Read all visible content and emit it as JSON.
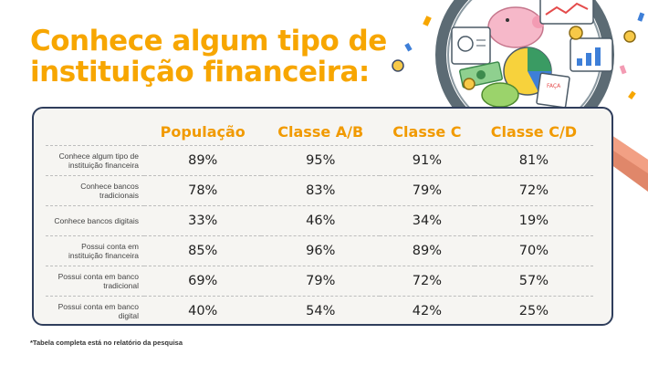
{
  "title": {
    "line1": "Conhece algum tipo de",
    "line2": "instituição financeira:"
  },
  "footnote": "*Tabela completa está no relatório da pesquisa",
  "illustration": {
    "badge_text": "FAÇA",
    "icons": [
      "magnifier-illustration",
      "piggy-bank-icon",
      "line-chart-card-icon",
      "bar-chart-card-icon",
      "pie-chart-icon",
      "coin-icon",
      "banknote-icon",
      "receipt-icon",
      "calculator-icon"
    ]
  },
  "colors": {
    "accent": "#f7a600",
    "header": "#f19a00",
    "border": "#2f3e5c",
    "card_bg": "#f6f5f2"
  },
  "chart_data": {
    "type": "table",
    "columns": [
      "População",
      "Classe A/B",
      "Classe C",
      "Classe C/D"
    ],
    "rows": [
      {
        "label": "Conhece algum tipo de instituição financeira",
        "values": [
          "89%",
          "95%",
          "91%",
          "81%"
        ]
      },
      {
        "label": "Conhece bancos tradicionais",
        "values": [
          "78%",
          "83%",
          "79%",
          "72%"
        ]
      },
      {
        "label": "Conhece bancos digitais",
        "values": [
          "33%",
          "46%",
          "34%",
          "19%"
        ]
      },
      {
        "label": "Possui conta em instituição financeira",
        "values": [
          "85%",
          "96%",
          "89%",
          "70%"
        ]
      },
      {
        "label": "Possui conta em banco tradicional",
        "values": [
          "69%",
          "79%",
          "72%",
          "57%"
        ]
      },
      {
        "label": "Possui conta em banco digital",
        "values": [
          "40%",
          "54%",
          "42%",
          "25%"
        ]
      }
    ]
  }
}
